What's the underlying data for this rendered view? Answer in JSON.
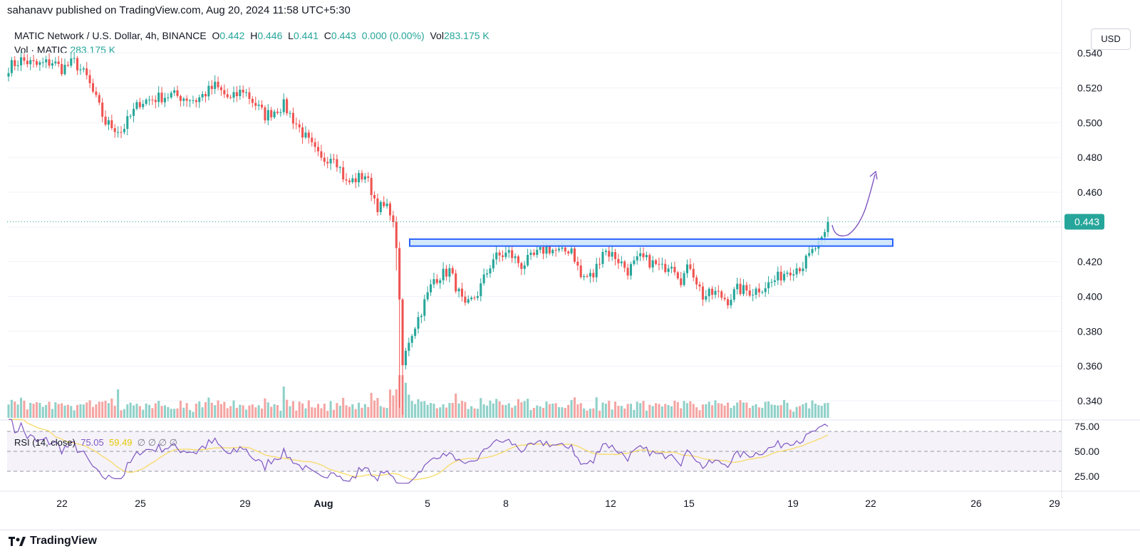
{
  "header": {
    "published": "sahanavv published on TradingView.com, Aug 20, 2024 11:58 UTC+5:30"
  },
  "legend": {
    "symbol": "MATIC Network / U.S. Dollar, 4h, BINANCE",
    "o_label": "O",
    "o_value": "0.442",
    "h_label": "H",
    "h_value": "0.446",
    "l_label": "L",
    "l_value": "0.441",
    "c_label": "C",
    "c_value": "0.443",
    "change": "0.000 (0.00%)",
    "vol_label": "Vol",
    "vol_value": "283.175 K",
    "vol_row_label": "Vol · MATIC",
    "vol_row_value": "283.175 K"
  },
  "rsi_legend": {
    "label": "RSI (14, close)",
    "rsi_value": "75.05",
    "ma_value": "59.49",
    "empty_marks": "∅ ∅ ∅ ∅"
  },
  "currency_button": "USD",
  "branding": "TradingView",
  "colors": {
    "up": "#26a69a",
    "down": "#ef5350",
    "vol_up": "#8fd1c9",
    "vol_down": "#f4a5a3",
    "rsi": "#7e57c2",
    "rsi_ma": "#f7dc6f",
    "zone_fill": "#cde4fb",
    "zone_stroke": "#2962ff",
    "arrow": "#7e57c2"
  },
  "chart_data": {
    "type": "candlestick",
    "symbol": "MATICUSD",
    "interval": "4h",
    "last_price": 0.443,
    "last_price_label": "0.443",
    "y_axis": {
      "ticks": [
        0.54,
        0.52,
        0.5,
        0.48,
        0.46,
        0.42,
        0.4,
        0.38,
        0.36,
        0.34
      ],
      "tick_labels": [
        "0.540",
        "0.520",
        "0.500",
        "0.480",
        "0.460",
        "0.420",
        "0.400",
        "0.380",
        "0.360",
        "0.340"
      ],
      "range": [
        0.328,
        0.555
      ]
    },
    "x_axis": {
      "tick_labels": [
        "22",
        "25",
        "29",
        "Aug",
        "5",
        "8",
        "12",
        "15",
        "19",
        "22",
        "26",
        "29"
      ]
    },
    "anchors": [
      {
        "i": 0,
        "p": 0.532
      },
      {
        "i": 4,
        "p": 0.536
      },
      {
        "i": 9,
        "p": 0.533
      },
      {
        "i": 14,
        "p": 0.535
      },
      {
        "i": 17,
        "p": 0.531
      },
      {
        "i": 21,
        "p": 0.535
      },
      {
        "i": 25,
        "p": 0.526
      },
      {
        "i": 31,
        "p": 0.5
      },
      {
        "i": 36,
        "p": 0.495
      },
      {
        "i": 42,
        "p": 0.512
      },
      {
        "i": 52,
        "p": 0.516
      },
      {
        "i": 60,
        "p": 0.513
      },
      {
        "i": 66,
        "p": 0.521
      },
      {
        "i": 71,
        "p": 0.513
      },
      {
        "i": 75,
        "p": 0.519
      },
      {
        "i": 82,
        "p": 0.504
      },
      {
        "i": 88,
        "p": 0.51
      },
      {
        "i": 94,
        "p": 0.494
      },
      {
        "i": 100,
        "p": 0.478
      },
      {
        "i": 104,
        "p": 0.482
      },
      {
        "i": 108,
        "p": 0.465
      },
      {
        "i": 114,
        "p": 0.47
      },
      {
        "i": 118,
        "p": 0.452
      },
      {
        "i": 122,
        "p": 0.45
      },
      {
        "i": 124,
        "p": 0.43
      },
      {
        "i": 126,
        "p": 0.36
      },
      {
        "i": 128,
        "p": 0.375
      },
      {
        "i": 132,
        "p": 0.392
      },
      {
        "i": 136,
        "p": 0.41
      },
      {
        "i": 141,
        "p": 0.415
      },
      {
        "i": 146,
        "p": 0.393
      },
      {
        "i": 150,
        "p": 0.402
      },
      {
        "i": 155,
        "p": 0.422
      },
      {
        "i": 160,
        "p": 0.425
      },
      {
        "i": 164,
        "p": 0.418
      },
      {
        "i": 172,
        "p": 0.428
      },
      {
        "i": 177,
        "p": 0.425
      },
      {
        "i": 180,
        "p": 0.428
      },
      {
        "i": 183,
        "p": 0.411
      },
      {
        "i": 187,
        "p": 0.412
      },
      {
        "i": 190,
        "p": 0.427
      },
      {
        "i": 194,
        "p": 0.423
      },
      {
        "i": 198,
        "p": 0.415
      },
      {
        "i": 202,
        "p": 0.422
      },
      {
        "i": 205,
        "p": 0.42
      },
      {
        "i": 209,
        "p": 0.416
      },
      {
        "i": 212,
        "p": 0.42
      },
      {
        "i": 215,
        "p": 0.41
      },
      {
        "i": 218,
        "p": 0.418
      },
      {
        "i": 222,
        "p": 0.4
      },
      {
        "i": 226,
        "p": 0.402
      },
      {
        "i": 230,
        "p": 0.398
      },
      {
        "i": 233,
        "p": 0.404
      },
      {
        "i": 238,
        "p": 0.403
      },
      {
        "i": 244,
        "p": 0.408
      },
      {
        "i": 249,
        "p": 0.415
      },
      {
        "i": 254,
        "p": 0.418
      },
      {
        "i": 258,
        "p": 0.428
      },
      {
        "i": 260,
        "p": 0.431
      },
      {
        "i": 262,
        "p": 0.443
      }
    ],
    "candle_count": 263,
    "resistance_zone": {
      "low": 0.429,
      "high": 0.433
    },
    "rsi": {
      "label": "RSI (14, close)",
      "ticks": [
        75,
        50,
        25
      ],
      "tick_labels": [
        "75.00",
        "50.00",
        "25.00"
      ],
      "band": [
        30,
        70
      ],
      "last": 75.05,
      "ma_last": 59.49
    }
  }
}
